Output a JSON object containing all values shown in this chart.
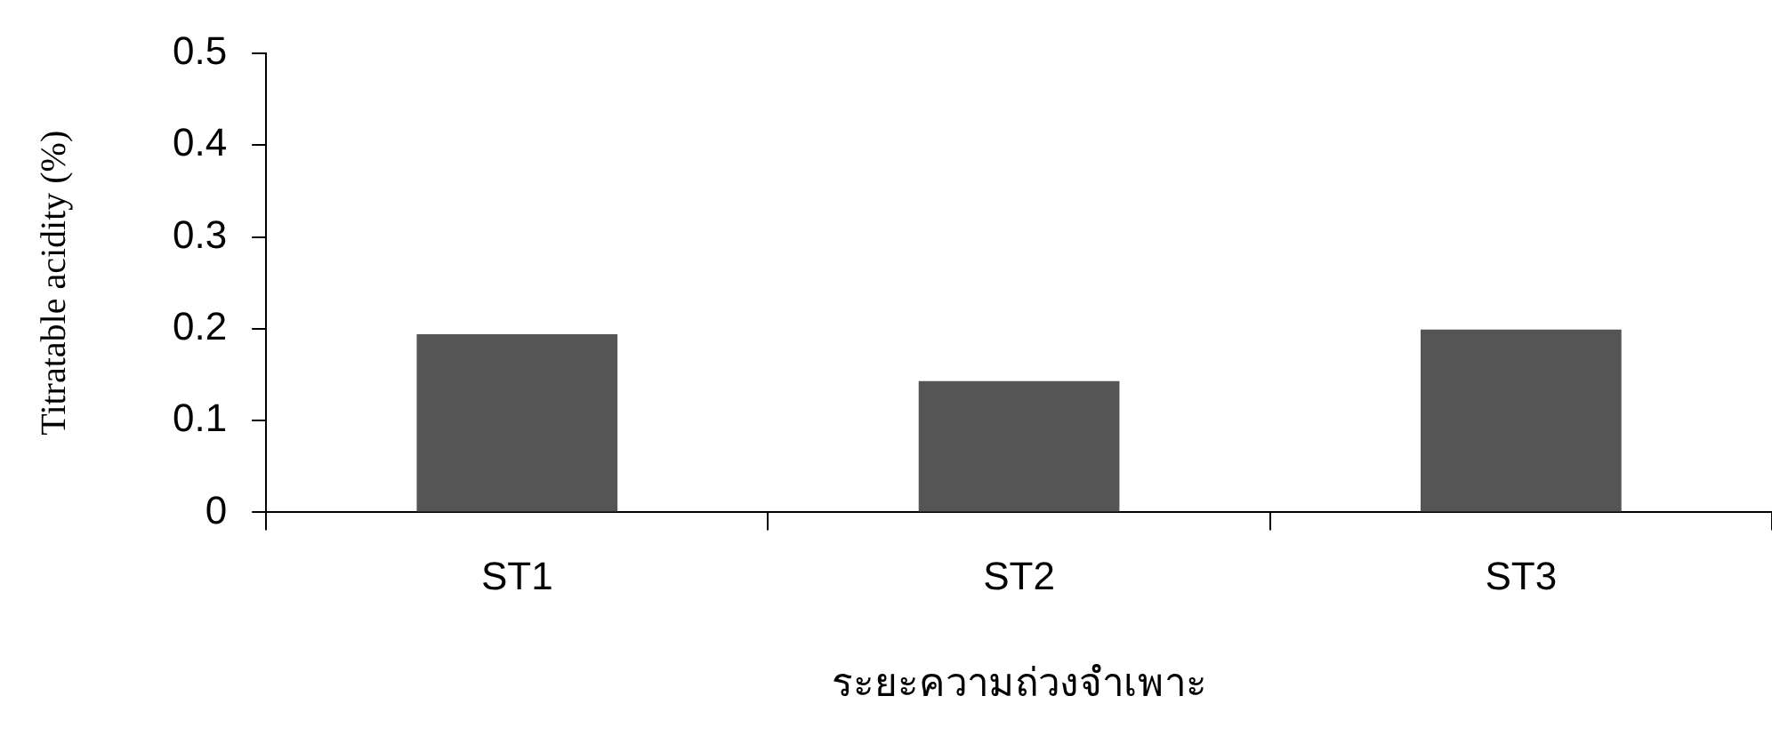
{
  "chart_data": {
    "type": "bar",
    "xlabel": "ระยะความถ่วงจำเพาะ",
    "ylabel": "Titratable acidity (%)",
    "categories": [
      "ST1",
      "ST2",
      "ST3"
    ],
    "values": [
      0.194,
      0.143,
      0.199
    ],
    "color": "#555555",
    "ylim": [
      0,
      0.5
    ],
    "yticks": [
      0,
      0.1,
      0.2,
      0.3,
      0.4,
      0.5
    ],
    "grid": false,
    "legend": false
  }
}
